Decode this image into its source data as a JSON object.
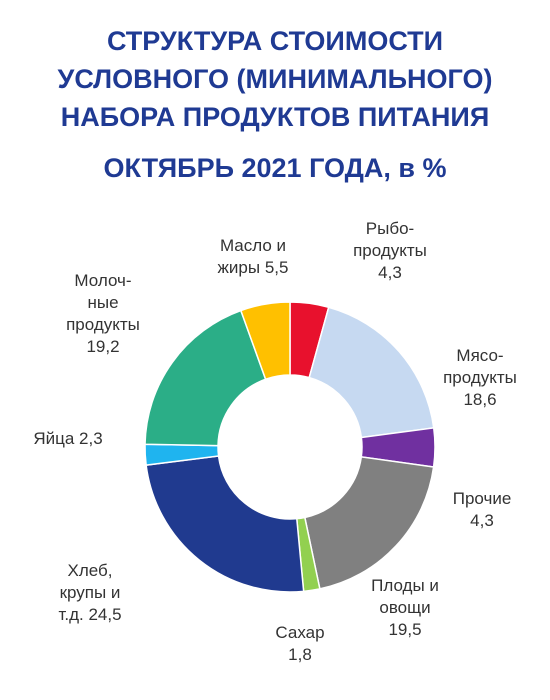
{
  "chart_data": {
    "type": "donut",
    "title": "СТРУКТУРА СТОИМОСТИ\nУСЛОВНОГО (МИНИМАЛЬНОГО)\nНАБОРА ПРОДУКТОВ ПИТАНИЯ",
    "subtitle": "ОКТЯБРЬ 2021 ГОДА, в %",
    "categories": [
      "Рыбо-\nпродукты",
      "Мясо-\nпродукты",
      "Прочие",
      "Плоды и\nовощи",
      "Сахар",
      "Хлеб,\nкрупы и\nт.д.",
      "Яйца",
      "Молоч-\nные\nпродукты",
      "Масло и\nжиры"
    ],
    "values": [
      4.3,
      18.6,
      4.3,
      19.5,
      1.8,
      24.5,
      2.3,
      19.2,
      5.5
    ],
    "value_labels": [
      "4,3",
      "18,6",
      "4,3",
      "19,5",
      "1,8",
      "24,5",
      "2,3",
      "19,2",
      "5,5"
    ],
    "colors": [
      "#e8112d",
      "#c6d9f1",
      "#7030a0",
      "#808080",
      "#92d050",
      "#203a8f",
      "#1fb4ef",
      "#2bae87",
      "#ffc000"
    ]
  }
}
